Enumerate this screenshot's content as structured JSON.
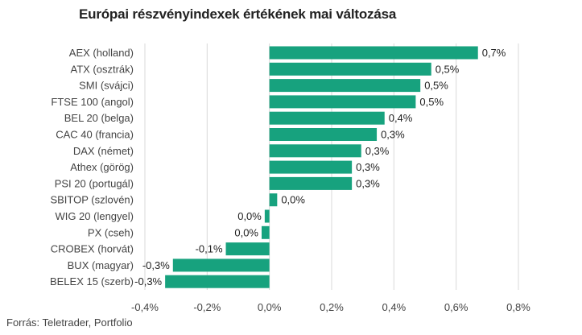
{
  "title": "Európai részvényindexek értékének mai változása",
  "source": "Forrás: Teletrader, Portfolio",
  "colors": {
    "bar": "#17a27e",
    "grid": "#d9d9d9",
    "text": "#444444"
  },
  "chart_data": {
    "type": "bar",
    "orientation": "horizontal",
    "title": "Európai részvényindexek értékének mai változása",
    "xlabel": "",
    "ylabel": "",
    "xlim": [
      -0.4,
      0.8
    ],
    "grid": true,
    "x_ticks": [
      -0.4,
      -0.2,
      0.0,
      0.2,
      0.4,
      0.6,
      0.8
    ],
    "x_tick_labels": [
      "-0,4%",
      "-0,2%",
      "0,0%",
      "0,2%",
      "0,4%",
      "0,6%",
      "0,8%"
    ],
    "categories": [
      "AEX (holland)",
      "ATX (osztrák)",
      "SMI (svájci)",
      "FTSE 100 (angol)",
      "BEL 20 (belga)",
      "CAC 40 (francia)",
      "DAX (német)",
      "Athex (görög)",
      "PSI 20 (portugál)",
      "SBITOP (szlovén)",
      "WIG 20 (lengyel)",
      "PX (cseh)",
      "CROBEX (horvát)",
      "BUX (magyar)",
      "BELEX 15 (szerb)"
    ],
    "values": [
      0.67,
      0.52,
      0.485,
      0.47,
      0.37,
      0.345,
      0.295,
      0.265,
      0.265,
      0.025,
      -0.015,
      -0.025,
      -0.14,
      -0.31,
      -0.335
    ],
    "value_labels": [
      "0,7%",
      "0,5%",
      "0,5%",
      "0,5%",
      "0,4%",
      "0,3%",
      "0,3%",
      "0,3%",
      "0,3%",
      "0,0%",
      "0,0%",
      "0,0%",
      "-0,1%",
      "-0,3%",
      "-0,3%"
    ]
  }
}
